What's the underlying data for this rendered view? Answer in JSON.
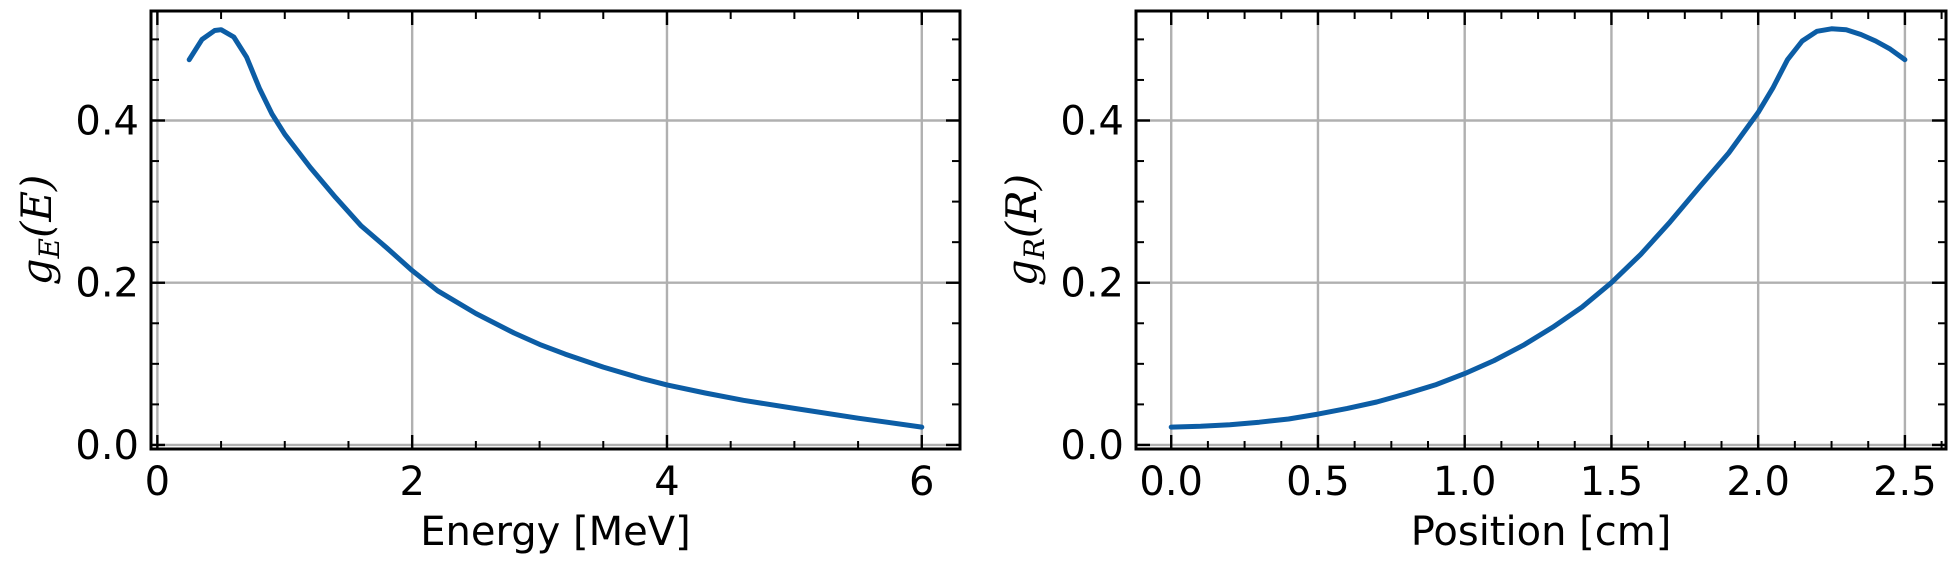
{
  "colors": {
    "series": "#0c5da5",
    "grid": "#b0b0b0",
    "axes": "#000000",
    "background": "#ffffff"
  },
  "chart_data": [
    {
      "type": "line",
      "xlabel": "Energy [MeV]",
      "ylabel": {
        "base": "g",
        "sub": "E",
        "arg": "(E)"
      },
      "xlim": [
        -0.05,
        6.3
      ],
      "ylim": [
        -0.005,
        0.535
      ],
      "xticks": [
        0,
        2,
        4,
        6
      ],
      "xtick_labels": [
        "0",
        "2",
        "4",
        "6"
      ],
      "yticks": [
        0.0,
        0.2,
        0.4
      ],
      "ytick_labels": [
        "0.0",
        "0.2",
        "0.4"
      ],
      "grid": true,
      "series": [
        {
          "color": "#0c5da5",
          "x": [
            0.25,
            0.35,
            0.45,
            0.5,
            0.6,
            0.7,
            0.8,
            0.9,
            1.0,
            1.2,
            1.4,
            1.6,
            1.8,
            2.0,
            2.2,
            2.5,
            2.8,
            3.0,
            3.2,
            3.5,
            3.8,
            4.0,
            4.3,
            4.6,
            5.0,
            5.5,
            6.0
          ],
          "y": [
            0.475,
            0.5,
            0.511,
            0.512,
            0.503,
            0.478,
            0.44,
            0.408,
            0.383,
            0.342,
            0.305,
            0.27,
            0.243,
            0.215,
            0.19,
            0.162,
            0.138,
            0.124,
            0.112,
            0.096,
            0.082,
            0.074,
            0.064,
            0.055,
            0.045,
            0.033,
            0.022
          ]
        }
      ]
    },
    {
      "type": "line",
      "xlabel": "Position [cm]",
      "ylabel": {
        "base": "g",
        "sub": "R",
        "arg": "(R)"
      },
      "xlim": [
        -0.12,
        2.64
      ],
      "ylim": [
        -0.005,
        0.535
      ],
      "xticks": [
        0.0,
        0.5,
        1.0,
        1.5,
        2.0,
        2.5
      ],
      "xtick_labels": [
        "0.0",
        "0.5",
        "1.0",
        "1.5",
        "2.0",
        "2.5"
      ],
      "yticks": [
        0.0,
        0.2,
        0.4
      ],
      "ytick_labels": [
        "0.0",
        "0.2",
        "0.4"
      ],
      "grid": true,
      "series": [
        {
          "color": "#0c5da5",
          "x": [
            0.0,
            0.1,
            0.2,
            0.3,
            0.4,
            0.5,
            0.6,
            0.7,
            0.8,
            0.9,
            1.0,
            1.1,
            1.2,
            1.3,
            1.4,
            1.5,
            1.6,
            1.7,
            1.8,
            1.9,
            2.0,
            2.05,
            2.1,
            2.15,
            2.2,
            2.25,
            2.3,
            2.35,
            2.4,
            2.45,
            2.5
          ],
          "y": [
            0.022,
            0.023,
            0.025,
            0.028,
            0.032,
            0.038,
            0.045,
            0.053,
            0.063,
            0.074,
            0.088,
            0.104,
            0.123,
            0.145,
            0.17,
            0.2,
            0.235,
            0.275,
            0.318,
            0.36,
            0.41,
            0.44,
            0.475,
            0.498,
            0.51,
            0.513,
            0.512,
            0.506,
            0.498,
            0.488,
            0.475
          ]
        }
      ]
    }
  ]
}
